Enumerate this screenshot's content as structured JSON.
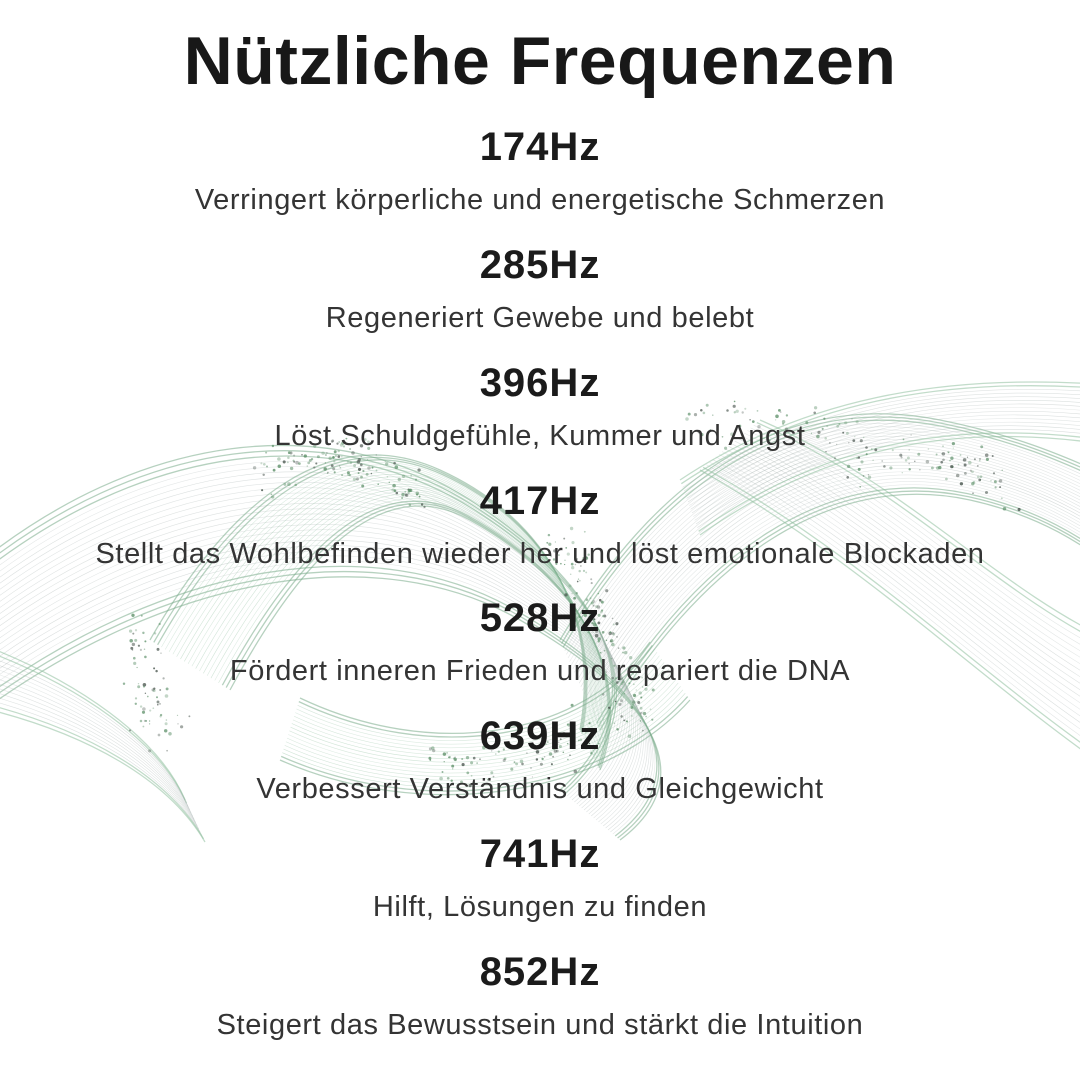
{
  "title": "Nützliche Frequenzen",
  "frequencies": [
    {
      "hz": "174Hz",
      "description": "Verringert körperliche und energetische Schmerzen"
    },
    {
      "hz": "285Hz",
      "description": "Regeneriert Gewebe und belebt"
    },
    {
      "hz": "396Hz",
      "description": "Löst Schuldgefühle, Kummer und Angst"
    },
    {
      "hz": "417Hz",
      "description": "Stellt das Wohlbefinden wieder her und löst emotionale Blockaden"
    },
    {
      "hz": "528Hz",
      "description": "Fördert inneren Frieden und repariert die DNA"
    },
    {
      "hz": "639Hz",
      "description": "Verbessert Verständnis und Gleichgewicht"
    },
    {
      "hz": "741Hz",
      "description": "Hilft, Lösungen zu finden"
    },
    {
      "hz": "852Hz",
      "description": "Steigert das Bewusstsein und stärkt die Intuition"
    }
  ],
  "colors": {
    "background": "#ffffff",
    "title_text": "#181818",
    "frequency_text": "#1b1b1b",
    "description_text": "#343434",
    "wave_gray": "#a9b4b2",
    "wave_green": "#8fbf9f",
    "wave_green_edge": "#7aab8b",
    "speckle_green": "#5c8f68",
    "speckle_dark": "#45514a"
  }
}
